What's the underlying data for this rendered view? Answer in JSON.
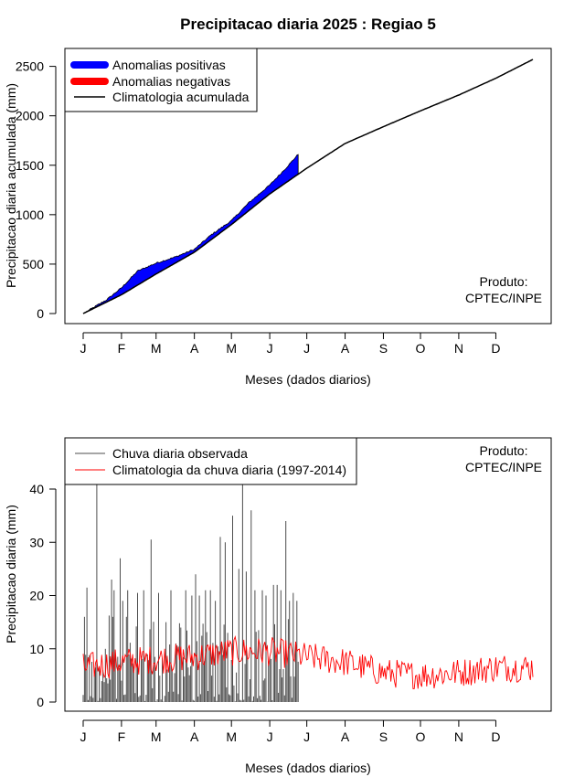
{
  "page": {
    "title": "Precipitacao diaria 2025 : Regiao 5",
    "credit_line1": "Produto:",
    "credit_line2": "CPTEC/INPE"
  },
  "colors": {
    "positive": "#0000ff",
    "negative": "#ff0000",
    "climatology_line": "#000000",
    "observed_line": "#4d4d4d",
    "daily_climatology": "#ff0000"
  },
  "chart_data": [
    {
      "type": "area",
      "ylabel": "Precipitacao diaria acumulada (mm)",
      "xlabel": "Meses (dados diarios)",
      "x_tick_labels": [
        "J",
        "F",
        "M",
        "A",
        "M",
        "J",
        "J",
        "A",
        "S",
        "O",
        "N",
        "D"
      ],
      "x_tick_days": [
        1,
        32,
        60,
        91,
        121,
        152,
        182,
        213,
        244,
        274,
        305,
        335
      ],
      "xlim": [
        1,
        365
      ],
      "ylim": [
        0,
        2600
      ],
      "y_ticks": [
        0,
        500,
        1000,
        1500,
        2000,
        2500
      ],
      "legend_position": "top-left",
      "legend": [
        "Anomalias positivas",
        "Anomalias negativas",
        "Climatologia acumulada"
      ],
      "climatology_knots": {
        "day": [
          1,
          32,
          60,
          91,
          121,
          152,
          182,
          213,
          244,
          274,
          305,
          335,
          365
        ],
        "value": [
          0,
          190,
          400,
          620,
          900,
          1210,
          1470,
          1720,
          1890,
          2050,
          2210,
          2380,
          2570
        ]
      },
      "observed_knots": {
        "day": [
          1,
          20,
          32,
          45,
          60,
          75,
          91,
          105,
          121,
          135,
          152,
          165,
          175
        ],
        "value": [
          0,
          140,
          260,
          430,
          510,
          570,
          650,
          800,
          940,
          1120,
          1300,
          1470,
          1610
        ]
      },
      "observed_last_day": 175
    },
    {
      "type": "line",
      "ylabel": "Precipitacao diaria (mm)",
      "xlabel": "Meses (dados diarios)",
      "x_tick_labels": [
        "J",
        "F",
        "M",
        "A",
        "M",
        "J",
        "J",
        "A",
        "S",
        "O",
        "N",
        "D"
      ],
      "x_tick_days": [
        1,
        32,
        60,
        91,
        121,
        152,
        182,
        213,
        244,
        274,
        305,
        335
      ],
      "xlim": [
        1,
        365
      ],
      "ylim": [
        0,
        48
      ],
      "y_ticks": [
        0,
        10,
        20,
        30,
        40
      ],
      "legend_position": "top-left",
      "series": [
        {
          "name": "Chuva diaria observada",
          "color": "#4d4d4d",
          "style": "histogram"
        },
        {
          "name": "Climatologia da chuva diaria (1997-2014)",
          "color": "#ff0000",
          "style": "line"
        }
      ],
      "observed_peaks": {
        "day": [
          2,
          4,
          12,
          19,
          24,
          25,
          26,
          31,
          33,
          36,
          37,
          45,
          50,
          56,
          62,
          68,
          72,
          76,
          80,
          84,
          89,
          92,
          95,
          100,
          104,
          108,
          112,
          116,
          118,
          122,
          127,
          130,
          133,
          137,
          140,
          143,
          146,
          149,
          155,
          158,
          161,
          165,
          168,
          171,
          174
        ],
        "value": [
          16,
          21.5,
          48,
          10,
          23,
          16,
          21,
          27,
          19,
          16,
          21,
          20.5,
          21,
          30.5,
          20.5,
          15,
          21,
          11,
          14,
          21,
          20,
          24,
          20,
          21,
          21,
          19,
          31,
          30,
          13,
          35,
          25,
          44,
          24.5,
          36,
          21,
          13.5,
          21,
          20,
          22,
          22,
          21,
          34,
          19,
          20.5,
          19
        ]
      },
      "observed_last_day": 175,
      "climatology_base": {
        "month_day": [
          1,
          32,
          60,
          91,
          121,
          152,
          182,
          213,
          244,
          274,
          305,
          335,
          365
        ],
        "value": [
          6.5,
          7.5,
          8,
          8.5,
          9.5,
          9.5,
          8.5,
          7.5,
          5.5,
          5.0,
          5.5,
          6.5,
          6.5
        ]
      }
    }
  ]
}
